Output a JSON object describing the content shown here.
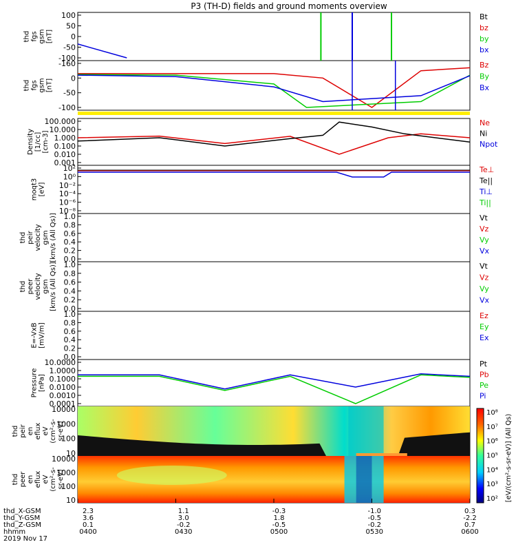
{
  "title": "P3 (TH-D) fields and ground moments overview",
  "date": "2019 Nov 17",
  "panels": [
    {
      "ylabel": [
        "thd",
        "fgs",
        "gsm",
        "[nT]"
      ],
      "ticks": [
        "100",
        "50",
        "0",
        "-50",
        "-100"
      ],
      "legend": [
        {
          "text": "Bt",
          "color": "#000000"
        },
        {
          "text": "bz",
          "color": "#dd0000"
        },
        {
          "text": "by",
          "color": "#00cc00"
        },
        {
          "text": "bx",
          "color": "#0000dd"
        }
      ]
    },
    {
      "ylabel": [
        "thd",
        "fgs",
        "gsm",
        "[nT]"
      ],
      "ticks": [
        "-160",
        "0",
        "-50",
        "-100"
      ],
      "legend": [
        {
          "text": "Bz",
          "color": "#dd0000"
        },
        {
          "text": "By",
          "color": "#00cc00"
        },
        {
          "text": "Bx",
          "color": "#0000dd"
        }
      ]
    },
    {
      "ylabel": [
        "Density",
        "[1/cc]",
        "[cm-3]"
      ],
      "ticks": [
        "100.000",
        "10.000",
        "1.000",
        "0.100",
        "0.010",
        "0.001"
      ],
      "legend": [
        {
          "text": "Ne",
          "color": "#dd0000"
        },
        {
          "text": "Ni",
          "color": "#000000"
        },
        {
          "text": "Npot",
          "color": "#0000dd"
        }
      ]
    },
    {
      "ylabel": [
        "moqt3",
        "[eV]"
      ],
      "ticks": [
        "10²",
        "10⁰",
        "10⁻²",
        "10⁻⁴",
        "10⁻⁶",
        "10⁻⁸"
      ],
      "legend": [
        {
          "text": "Te⊥",
          "color": "#dd0000"
        },
        {
          "text": "Te||",
          "color": "#000000"
        },
        {
          "text": "Ti⊥",
          "color": "#0000dd"
        },
        {
          "text": "Ti||",
          "color": "#00cc00"
        }
      ]
    },
    {
      "ylabel": [
        "thd",
        "peir",
        "velocity",
        "gsm",
        "[km/s (All Qs)]"
      ],
      "ticks": [
        "1.0",
        "0.8",
        "0.6",
        "0.4",
        "0.2",
        "0.0"
      ],
      "legend": [
        {
          "text": "Vt",
          "color": "#000000"
        },
        {
          "text": "Vz",
          "color": "#dd0000"
        },
        {
          "text": "Vy",
          "color": "#00cc00"
        },
        {
          "text": "Vx",
          "color": "#0000dd"
        }
      ]
    },
    {
      "ylabel": [
        "thd",
        "peer",
        "velocity",
        "gsm",
        "[km/s (All Qs)]"
      ],
      "ticks": [
        "1.0",
        "0.8",
        "0.6",
        "0.4",
        "0.2",
        "0.0"
      ],
      "legend": [
        {
          "text": "Vt",
          "color": "#000000"
        },
        {
          "text": "Vz",
          "color": "#dd0000"
        },
        {
          "text": "Vy",
          "color": "#00cc00"
        },
        {
          "text": "Vx",
          "color": "#0000dd"
        }
      ]
    },
    {
      "ylabel": [
        "E=-VxB",
        "[mV/m]"
      ],
      "ticks": [
        "1.0",
        "0.8",
        "0.6",
        "0.4",
        "0.2",
        "0.0"
      ],
      "legend": [
        {
          "text": "Ez",
          "color": "#dd0000"
        },
        {
          "text": "Ey",
          "color": "#00cc00"
        },
        {
          "text": "Ex",
          "color": "#0000dd"
        }
      ]
    },
    {
      "ylabel": [
        "Pressure",
        "[nPa]"
      ],
      "ticks": [
        "10.0000",
        "1.0000",
        "0.1000",
        "0.0100",
        "0.0010",
        "0.0001"
      ],
      "legend": [
        {
          "text": "Pt",
          "color": "#000000"
        },
        {
          "text": "Pb",
          "color": "#dd0000"
        },
        {
          "text": "Pe",
          "color": "#00cc00"
        },
        {
          "text": "Pi",
          "color": "#0000dd"
        }
      ]
    },
    {
      "ylabel": [
        "thd",
        "peir",
        "en",
        "eflux",
        "eV",
        "(cm²-s-",
        "sr-eV)"
      ],
      "ticks": [
        "10000",
        "1000",
        "100",
        "10"
      ],
      "legend": []
    },
    {
      "ylabel": [
        "thd",
        "peer",
        "en",
        "eflux",
        "eV",
        "(cm²-s-",
        "sr-eV)"
      ],
      "ticks": [
        "10000",
        "1000",
        "100",
        "10"
      ],
      "legend": []
    }
  ],
  "colorbar": {
    "label": "[eV/(cm²-s-sr-eV)] (All Qs)",
    "ticks": [
      "10⁸",
      "10⁷",
      "10⁶",
      "10⁵",
      "10⁴",
      "10³",
      "10²"
    ]
  },
  "footer": {
    "rows": [
      {
        "label": "thd_X-GSM",
        "values": [
          "2.3",
          "1.1",
          "-0.3",
          "-1.0",
          "0.3"
        ]
      },
      {
        "label": "thd_Y-GSM",
        "values": [
          "3.6",
          "3.0",
          "1.8",
          "-0.5",
          "-2.2"
        ]
      },
      {
        "label": "thd_Z-GSM",
        "values": [
          "0.1",
          "-0.2",
          "-0.5",
          "-0.2",
          "0.7"
        ]
      },
      {
        "label": "hhmm",
        "values": [
          "0400",
          "0430",
          "0500",
          "0530",
          "0600"
        ]
      }
    ]
  },
  "chart_data": {
    "type": "line",
    "title": "P3 (TH-D) fields and ground moments overview",
    "x_time_labels": [
      "0400",
      "0430",
      "0500",
      "0530",
      "0600"
    ],
    "series": [
      {
        "panel": "fgs_gsm_top",
        "name": "bx",
        "values_x": [
          "0400",
          "0415"
        ],
        "values": [
          -35,
          -100
        ]
      },
      {
        "panel": "fgs_gsm_bottom",
        "name": "Bz",
        "values_x": [
          "0400",
          "0430",
          "0500",
          "0515",
          "0530",
          "0545",
          "0600"
        ],
        "values": [
          -5,
          -5,
          -5,
          -20,
          -120,
          5,
          15
        ]
      },
      {
        "panel": "fgs_gsm_bottom",
        "name": "By",
        "values_x": [
          "0400",
          "0430",
          "0500",
          "0510",
          "0545",
          "0600"
        ],
        "values": [
          -8,
          -10,
          -40,
          -120,
          -100,
          -10
        ]
      },
      {
        "panel": "fgs_gsm_bottom",
        "name": "Bx",
        "values_x": [
          "0400",
          "0430",
          "0500",
          "0515",
          "0545",
          "0600"
        ],
        "values": [
          -10,
          -15,
          -50,
          -100,
          -80,
          -12
        ]
      },
      {
        "panel": "density",
        "name": "Ne",
        "values_x": [
          "0400",
          "0425",
          "0445",
          "0505",
          "0520",
          "0535",
          "0545",
          "0600"
        ],
        "values": [
          1.0,
          1.6,
          0.2,
          1.5,
          0.01,
          1.0,
          3.0,
          1.0
        ]
      },
      {
        "panel": "density",
        "name": "Ni",
        "values_x": [
          "0400",
          "0425",
          "0445",
          "0505",
          "0515",
          "0520",
          "0530",
          "0540",
          "0600"
        ],
        "values": [
          0.4,
          1.0,
          0.1,
          0.8,
          2.0,
          80,
          20,
          3.0,
          0.3
        ]
      },
      {
        "panel": "pressure",
        "name": "Pi",
        "values_x": [
          "0400",
          "0425",
          "0445",
          "0505",
          "0525",
          "0545",
          "0600"
        ],
        "values": [
          0.3,
          0.3,
          0.006,
          0.3,
          0.01,
          0.4,
          0.2
        ]
      },
      {
        "panel": "pressure",
        "name": "Pe",
        "values_x": [
          "0400",
          "0425",
          "0445",
          "0505",
          "0525",
          "0545",
          "0600"
        ],
        "values": [
          0.2,
          0.2,
          0.004,
          0.2,
          0.0001,
          0.3,
          0.15
        ]
      }
    ]
  }
}
